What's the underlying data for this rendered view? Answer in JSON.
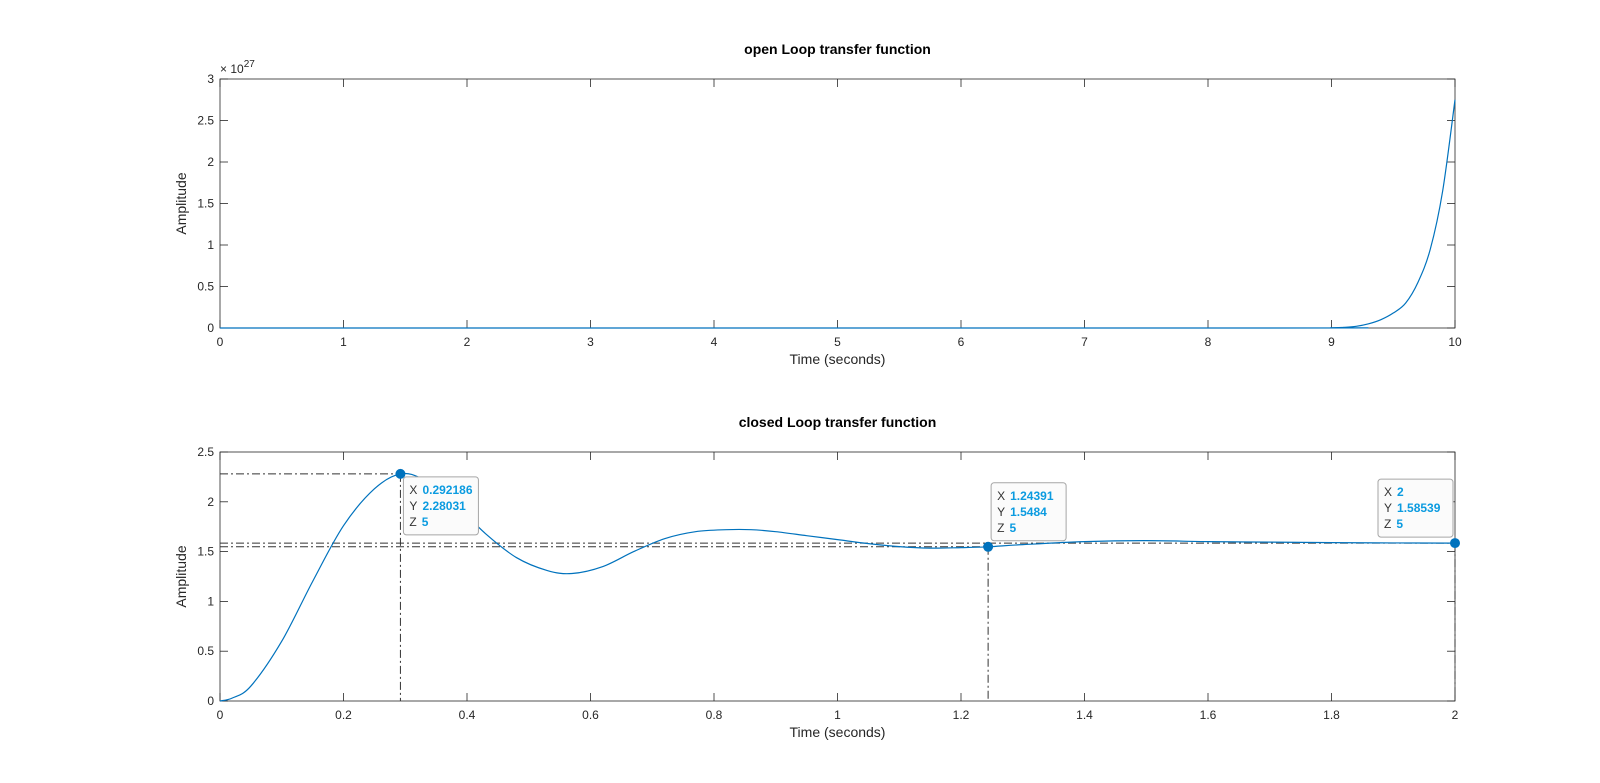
{
  "chart_data": [
    {
      "type": "line",
      "title": "open Loop transfer function",
      "xlabel": "Time (seconds)",
      "ylabel": "Amplitude",
      "xlim": [
        0,
        10
      ],
      "ylim": [
        0,
        3
      ],
      "y_exponent_label": "× 10",
      "y_exponent": "27",
      "y_scale": 1e+27,
      "xticks": [
        0,
        1,
        2,
        3,
        4,
        5,
        6,
        7,
        8,
        9,
        10
      ],
      "yticks": [
        0,
        0.5,
        1,
        1.5,
        2,
        2.5,
        3
      ],
      "ytick_labels": [
        "0",
        "0.5",
        "1",
        "1.5",
        "2",
        "2.5",
        "3"
      ],
      "grid": false,
      "color": "#0072BD",
      "series": [
        {
          "x": [
            0,
            8.5,
            9.0,
            9.1,
            9.2,
            9.3,
            9.4,
            9.5,
            9.6,
            9.7,
            9.8,
            9.9,
            10.0
          ],
          "y": [
            0,
            0,
            0.004,
            0.008,
            0.02,
            0.05,
            0.1,
            0.18,
            0.3,
            0.55,
            0.95,
            1.65,
            2.75
          ]
        }
      ],
      "datatips": []
    },
    {
      "type": "line",
      "title": "closed Loop transfer function",
      "xlabel": "Time (seconds)",
      "ylabel": "Amplitude",
      "xlim": [
        0,
        2
      ],
      "ylim": [
        0,
        2.5
      ],
      "xticks": [
        0,
        0.2,
        0.4,
        0.6,
        0.8,
        1,
        1.2,
        1.4,
        1.6,
        1.8,
        2
      ],
      "yticks": [
        0,
        0.5,
        1,
        1.5,
        2,
        2.5
      ],
      "ytick_labels": [
        "0",
        "0.5",
        "1",
        "1.5",
        "2",
        "2.5"
      ],
      "grid": false,
      "color": "#0072BD",
      "series": [
        {
          "x": [
            0,
            0.02,
            0.05,
            0.1,
            0.15,
            0.2,
            0.25,
            0.292,
            0.33,
            0.38,
            0.43,
            0.48,
            0.53,
            0.57,
            0.62,
            0.67,
            0.72,
            0.77,
            0.82,
            0.86,
            0.9,
            0.95,
            1.0,
            1.05,
            1.1,
            1.15,
            1.2,
            1.244,
            1.3,
            1.4,
            1.5,
            1.6,
            1.7,
            1.8,
            1.9,
            2.0
          ],
          "y": [
            0,
            0.03,
            0.15,
            0.6,
            1.2,
            1.76,
            2.13,
            2.28,
            2.22,
            1.98,
            1.68,
            1.44,
            1.31,
            1.28,
            1.35,
            1.5,
            1.63,
            1.7,
            1.72,
            1.72,
            1.7,
            1.66,
            1.62,
            1.58,
            1.55,
            1.535,
            1.54,
            1.548,
            1.57,
            1.6,
            1.61,
            1.6,
            1.595,
            1.59,
            1.587,
            1.585
          ]
        }
      ],
      "datatips": [
        {
          "x": 0.292186,
          "y": 2.28031,
          "x_label": "X",
          "y_label": "Y",
          "z_label": "Z",
          "x_text": "0.292186",
          "y_text": "2.28031",
          "z_text": "5",
          "box": "right-below"
        },
        {
          "x": 1.24391,
          "y": 1.5484,
          "x_label": "X",
          "y_label": "Y",
          "z_label": "Z",
          "x_text": "1.24391",
          "y_text": "1.5484",
          "z_text": "5",
          "box": "right-above"
        },
        {
          "x": 2,
          "y": 1.58539,
          "x_label": "X",
          "y_label": "Y",
          "z_label": "Z",
          "x_text": "2",
          "y_text": "1.58539",
          "z_text": "5",
          "box": "left-above"
        }
      ]
    }
  ]
}
